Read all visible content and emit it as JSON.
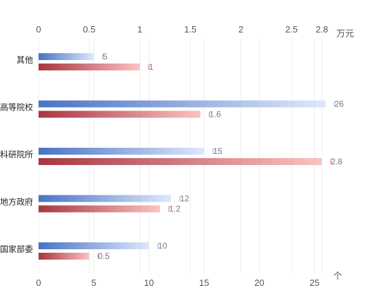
{
  "chart_data": {
    "type": "bar",
    "orientation": "horizontal",
    "categories": [
      "其他",
      "高等院校",
      "科研院所",
      "地方政府",
      "国家部委"
    ],
    "series": [
      {
        "axis": "bottom",
        "unit": "个",
        "values": [
          5,
          26,
          15,
          12,
          10
        ],
        "labels": [
          "5",
          "26",
          "15",
          "12",
          "10"
        ],
        "colors": [
          "#4a72c4",
          "#dde8fb"
        ]
      },
      {
        "axis": "top",
        "unit": "万元",
        "values": [
          1,
          1.6,
          2.8,
          1.2,
          0.5
        ],
        "labels": [
          "1",
          "1.6",
          "2.8",
          "1.2",
          "0.5"
        ],
        "colors": [
          "#a83640",
          "#fbc2c2"
        ]
      }
    ],
    "x_bottom": {
      "ticks": [
        0,
        5,
        10,
        15,
        20,
        25
      ],
      "tick_labels": [
        "0",
        "5",
        "10",
        "15",
        "20",
        "25"
      ],
      "range": [
        0,
        27.5
      ],
      "unit": "个"
    },
    "x_top": {
      "ticks": [
        0,
        0.5,
        1,
        1.5,
        2,
        2.5,
        2.8
      ],
      "tick_labels": [
        "0",
        "0.5",
        "1",
        "1.5",
        "2",
        "2.5",
        "2.8"
      ],
      "range": [
        0,
        3.0
      ],
      "unit": "万元"
    },
    "grid": true,
    "legend": "none"
  }
}
